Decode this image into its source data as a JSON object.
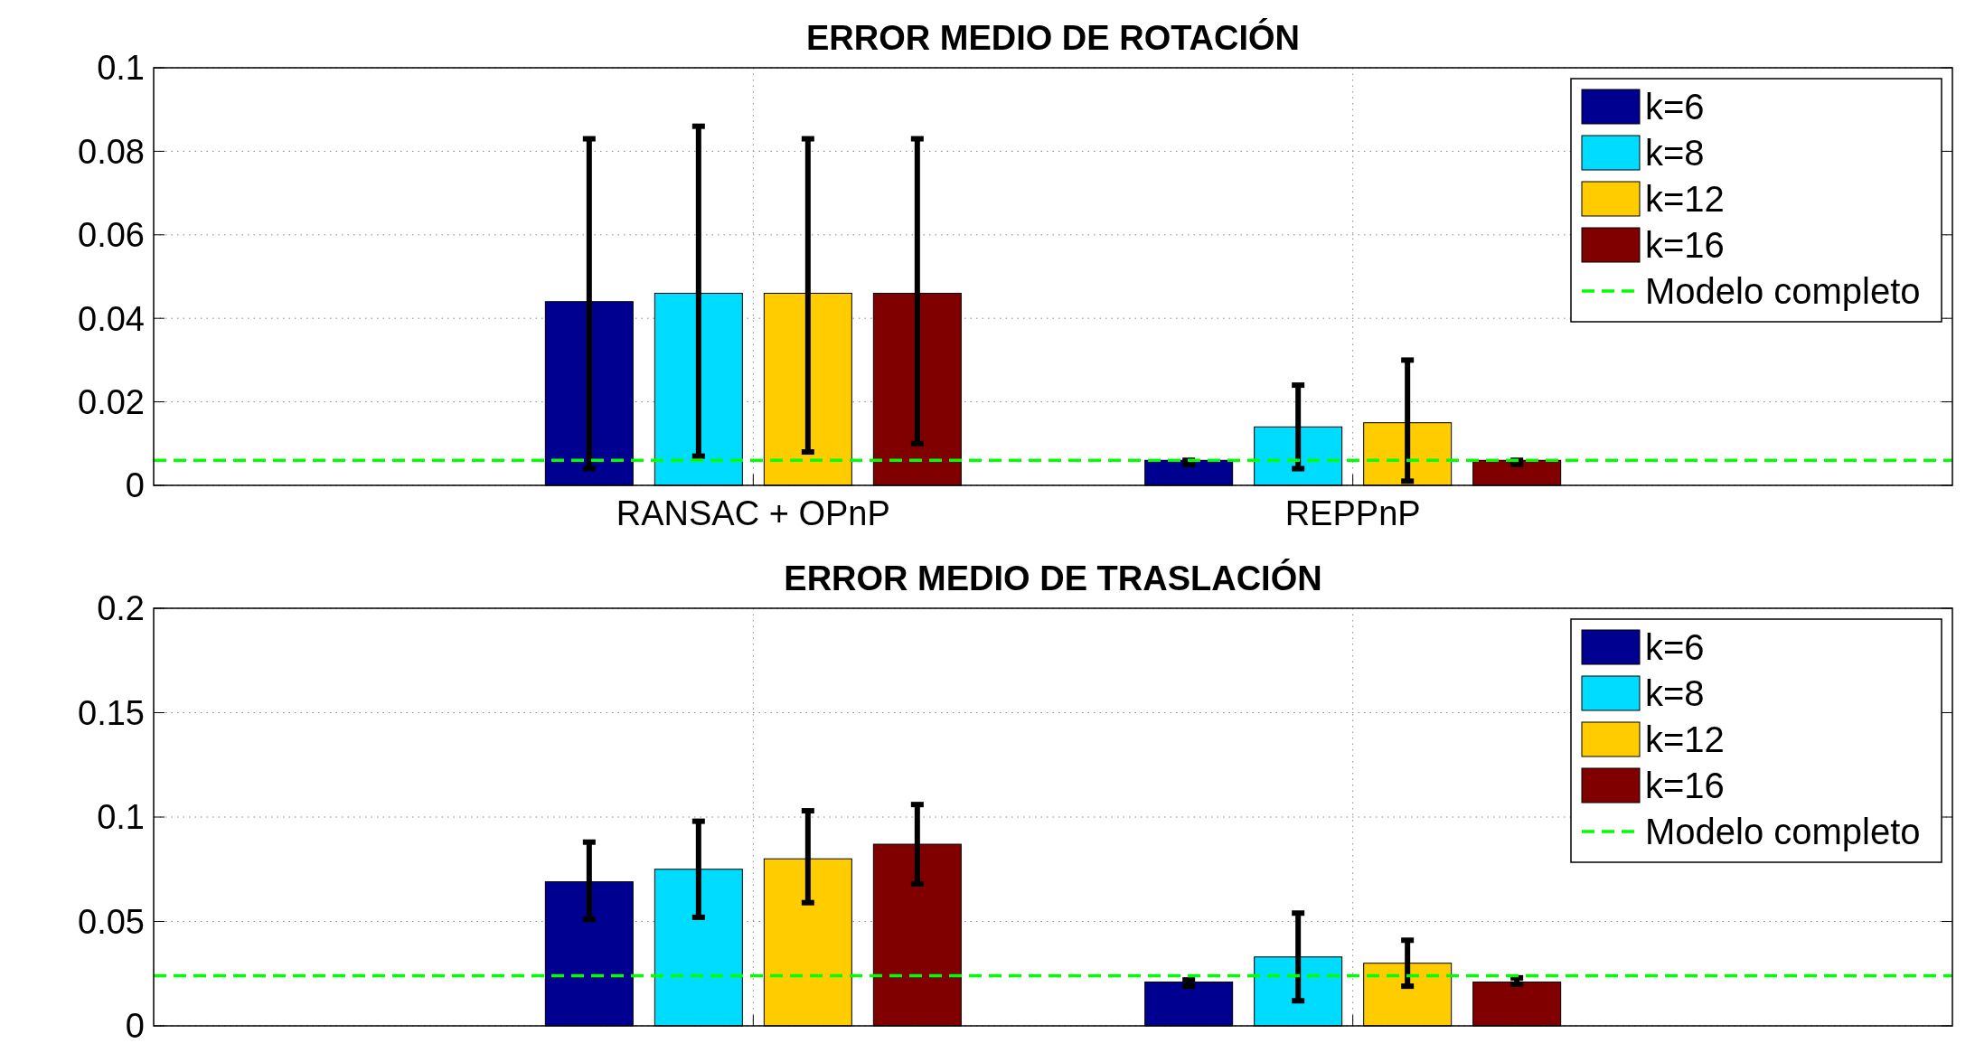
{
  "chart_data": [
    {
      "type": "bar",
      "title": "ERROR MEDIO DE ROTACIÓN",
      "categories": [
        "RANSAC + OPnP",
        "REPPnP"
      ],
      "ylim": [
        0,
        0.1
      ],
      "yticks": [
        0,
        0.02,
        0.04,
        0.06,
        0.08,
        0.1
      ],
      "grid": true,
      "legend": "top right",
      "series": [
        {
          "name": "k=6",
          "color": "#000090",
          "values": [
            0.044,
            0.006
          ],
          "errors": [
            [
              0.004,
              0.083
            ],
            [
              0.005,
              0.006
            ]
          ]
        },
        {
          "name": "k=8",
          "color": "#00dcff",
          "values": [
            0.046,
            0.014
          ],
          "errors": [
            [
              0.007,
              0.086
            ],
            [
              0.004,
              0.024
            ]
          ]
        },
        {
          "name": "k=12",
          "color": "#ffcc00",
          "values": [
            0.046,
            0.015
          ],
          "errors": [
            [
              0.008,
              0.083
            ],
            [
              0.001,
              0.03
            ]
          ]
        },
        {
          "name": "k=16",
          "color": "#800000",
          "values": [
            0.046,
            0.006
          ],
          "errors": [
            [
              0.01,
              0.083
            ],
            [
              0.005,
              0.006
            ]
          ]
        }
      ],
      "ref_lines": [
        {
          "axis": "y",
          "value": 0.006,
          "label": "Modelo completo",
          "color": "#00ff00",
          "line_style": "dashed"
        }
      ]
    },
    {
      "type": "bar",
      "title": "ERROR MEDIO DE TRASLACIÓN",
      "categories": [
        null,
        null
      ],
      "ylim": [
        0,
        0.2
      ],
      "yticks": [
        0,
        0.05,
        0.1,
        0.15,
        0.2
      ],
      "grid": true,
      "legend": "top right",
      "series": [
        {
          "name": "k=6",
          "color": "#000090",
          "values": [
            0.069,
            0.021
          ],
          "errors": [
            [
              0.051,
              0.088
            ],
            [
              0.019,
              0.022
            ]
          ]
        },
        {
          "name": "k=8",
          "color": "#00dcff",
          "values": [
            0.075,
            0.033
          ],
          "errors": [
            [
              0.052,
              0.098
            ],
            [
              0.012,
              0.054
            ]
          ]
        },
        {
          "name": "k=12",
          "color": "#ffcc00",
          "values": [
            0.08,
            0.03
          ],
          "errors": [
            [
              0.059,
              0.103
            ],
            [
              0.019,
              0.041
            ]
          ]
        },
        {
          "name": "k=16",
          "color": "#800000",
          "values": [
            0.087,
            0.021
          ],
          "errors": [
            [
              0.068,
              0.106
            ],
            [
              0.02,
              0.023
            ]
          ]
        }
      ],
      "ref_lines": [
        {
          "axis": "y",
          "value": 0.024,
          "label": "Modelo completo",
          "color": "#00ff00",
          "line_style": "dashed"
        }
      ]
    }
  ]
}
